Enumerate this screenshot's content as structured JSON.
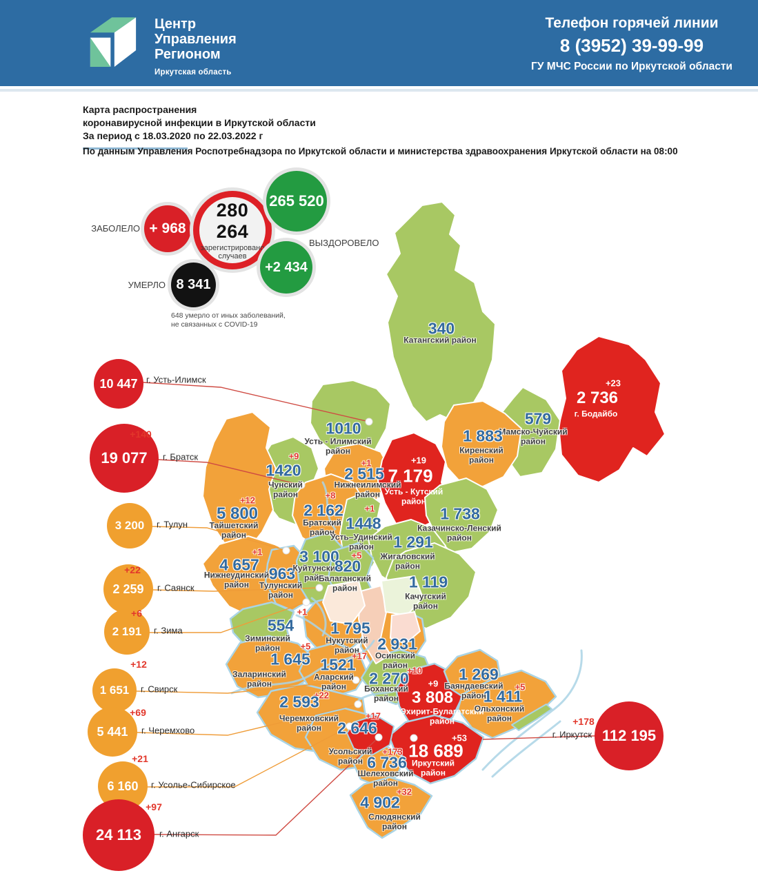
{
  "header": {
    "logo": {
      "lines": [
        "Центр",
        "Управления",
        "Регионом"
      ],
      "subtitle": "Иркутская область"
    },
    "hotline": {
      "label": "Телефон горячей линии",
      "phone": "8 (3952) 39-99-99",
      "org": "ГУ МЧС России по Иркутской области"
    }
  },
  "title": {
    "line1": "Карта распространения",
    "line2": "коронавирусной инфекции в Иркутской области",
    "line3": "За период с 18.03.2020 по 22.03.2022 г",
    "source": "По данным Управления Роспотребнадзора по Иркутской области и министерства здравоохранения Иркутской области на 08:00"
  },
  "stats": {
    "infected": {
      "label": "ЗАБОЛЕЛО",
      "delta": "+ 968"
    },
    "registered": {
      "value": "280 264",
      "caption": "зарегистрировано случаев"
    },
    "recovered": {
      "total": "265 520",
      "label": "ВЫЗДОРОВЕЛО",
      "delta": "+2 434"
    },
    "died": {
      "label": "УМЕРЛО",
      "value": "8 341"
    },
    "note": "648 умерло от иных заболеваний, не связанных с COVID-19"
  },
  "colors": {
    "header_bg": "#2d6ca3",
    "green": "#a8c863",
    "orange": "#f2a23a",
    "red": "#e0241f",
    "circle_red": "#d92027",
    "circle_orange": "#f0a02f",
    "circle_green": "#239b41",
    "circle_black": "#121212",
    "line_red": "#cf4a42",
    "line_orange": "#ef9c38",
    "river": "#aad4e5"
  },
  "map": {
    "districts": [
      {
        "id": "katangsky",
        "name": "Катангский район",
        "value": "340",
        "delta": "",
        "level": "green"
      },
      {
        "id": "bodaibinsky",
        "name": "г. Бодайбо",
        "value": "2 736",
        "delta": "+23",
        "level": "red"
      },
      {
        "id": "mamsko",
        "name": "Мамско-Чуйский\nрайон",
        "value": "579",
        "delta": "",
        "level": "green"
      },
      {
        "id": "kirensky",
        "name": "Киренский\nрайон",
        "value": "1 883",
        "delta": "",
        "level": "orange"
      },
      {
        "id": "ust_ilimsky",
        "name": "Усть - Илимский\nрайон",
        "value": "1010",
        "delta": "",
        "level": "green"
      },
      {
        "id": "nizhneilimsky",
        "name": "Нижнеилимский\nрайон",
        "value": "2 515",
        "delta": "+1",
        "level": "orange"
      },
      {
        "id": "ust_kutsky",
        "name": "Усть - Кутский\nрайон",
        "value": "7 179",
        "delta": "+19",
        "level": "red"
      },
      {
        "id": "chunsky",
        "name": "Чунский\nрайон",
        "value": "1420",
        "delta": "+9",
        "level": "green"
      },
      {
        "id": "taishetsky",
        "name": "Тайшетский\nрайон",
        "value": "5 800",
        "delta": "+12",
        "level": "orange"
      },
      {
        "id": "bratsky",
        "name": "Братский\nрайон",
        "value": "2 162",
        "delta": "+8",
        "level": "orange"
      },
      {
        "id": "ust_udinsky",
        "name": "Усть–Удинский\nрайон",
        "value": "1448",
        "delta": "+1",
        "level": "green"
      },
      {
        "id": "kazachinsko",
        "name": "Казачинско-Ленский\nрайон",
        "value": "1 738",
        "delta": "",
        "level": "green"
      },
      {
        "id": "zhigalovsky",
        "name": "Жигаловский\nрайон",
        "value": "1 291",
        "delta": "",
        "level": "green"
      },
      {
        "id": "kachugsky",
        "name": "Качугский\nрайон",
        "value": "1 119",
        "delta": "",
        "level": "green"
      },
      {
        "id": "nizhneudinsky",
        "name": "Нижнеудинский\nрайон",
        "value": "4 657",
        "delta": "+1",
        "level": "orange"
      },
      {
        "id": "tulunsky",
        "name": "Тулунский\nрайон",
        "value": "963",
        "delta": "",
        "level": "orange"
      },
      {
        "id": "kuitunsky",
        "name": "Куйтунский\nрайон",
        "value": "3 100",
        "delta": "",
        "level": "green"
      },
      {
        "id": "balagansky",
        "name": "Балаганский\nрайон",
        "value": "820",
        "delta": "+5",
        "level": "green"
      },
      {
        "id": "ziminsky",
        "name": "Зиминский\nрайон",
        "value": "554",
        "delta": "+1",
        "level": "green"
      },
      {
        "id": "nukutsky",
        "name": "Нукутский\nрайон",
        "value": "1 795",
        "delta": "",
        "level": "orange"
      },
      {
        "id": "osinsky",
        "name": "Осинский\nрайон",
        "value": "2 931",
        "delta": "",
        "level": "orange"
      },
      {
        "id": "zalarinsky",
        "name": "Заларинский\nрайон",
        "value": "1 645",
        "delta": "+5",
        "level": "orange"
      },
      {
        "id": "alarsky",
        "name": "Аларский\nрайон",
        "value": "1521",
        "delta": "+17",
        "level": "orange"
      },
      {
        "id": "bokhansky",
        "name": "Боханский\nрайон",
        "value": "2 270",
        "delta": "+10",
        "level": "green"
      },
      {
        "id": "cheremkhovsky",
        "name": "Черемховский\nрайон",
        "value": "2 593",
        "delta": "+22",
        "level": "orange"
      },
      {
        "id": "usolsky",
        "name": "Усольский\nрайон",
        "value": "2 646",
        "delta": "+17",
        "level": "orange"
      },
      {
        "id": "ekhirit",
        "name": "Эхирит-Булагатский\nрайон",
        "value": "3 808",
        "delta": "+9",
        "level": "red"
      },
      {
        "id": "bayandaevsky",
        "name": "Баяндаевский\nрайон",
        "value": "1 269",
        "delta": "",
        "level": "orange"
      },
      {
        "id": "olkhonsky",
        "name": "Ольхонский\nрайон",
        "value": "1 411",
        "delta": "+5",
        "level": "orange"
      },
      {
        "id": "irkutsky",
        "name": "Иркутский\nрайон",
        "value": "18 689",
        "delta": "+53",
        "level": "red"
      },
      {
        "id": "shelekhovsky",
        "name": "Шелеховский\nрайон",
        "value": "6 736",
        "delta": "+173",
        "level": "orange"
      },
      {
        "id": "slyudyansky",
        "name": "Слюдянский\nрайон",
        "value": "4 902",
        "delta": "+32",
        "level": "orange"
      }
    ]
  },
  "callouts": [
    {
      "id": "ust_ilimsk",
      "city": "г. Усть-Илимск",
      "value": "10 447",
      "delta": "",
      "color": "red"
    },
    {
      "id": "bratsk",
      "city": "г. Братск",
      "value": "19 077",
      "delta": "+140",
      "color": "red"
    },
    {
      "id": "tulun",
      "city": "г. Тулун",
      "value": "3 200",
      "delta": "",
      "color": "orange"
    },
    {
      "id": "sayansk",
      "city": "г. Саянск",
      "value": "2 259",
      "delta": "+22",
      "color": "orange"
    },
    {
      "id": "zima",
      "city": "г. Зима",
      "value": "2 191",
      "delta": "+6",
      "color": "orange"
    },
    {
      "id": "svirsk",
      "city": "г. Свирск",
      "value": "1 651",
      "delta": "+12",
      "color": "orange"
    },
    {
      "id": "cheremkhovo",
      "city": "г. Черемхово",
      "value": "5 441",
      "delta": "+69",
      "color": "orange"
    },
    {
      "id": "usolye",
      "city": "г. Усолье-Сибирское",
      "value": "6 160",
      "delta": "+21",
      "color": "orange"
    },
    {
      "id": "angarsk",
      "city": "г. Ангарск",
      "value": "24 113",
      "delta": "+97",
      "color": "red"
    },
    {
      "id": "irkutsk",
      "city": "г. Иркутск",
      "value": "112 195",
      "delta": "+178",
      "color": "red"
    }
  ]
}
